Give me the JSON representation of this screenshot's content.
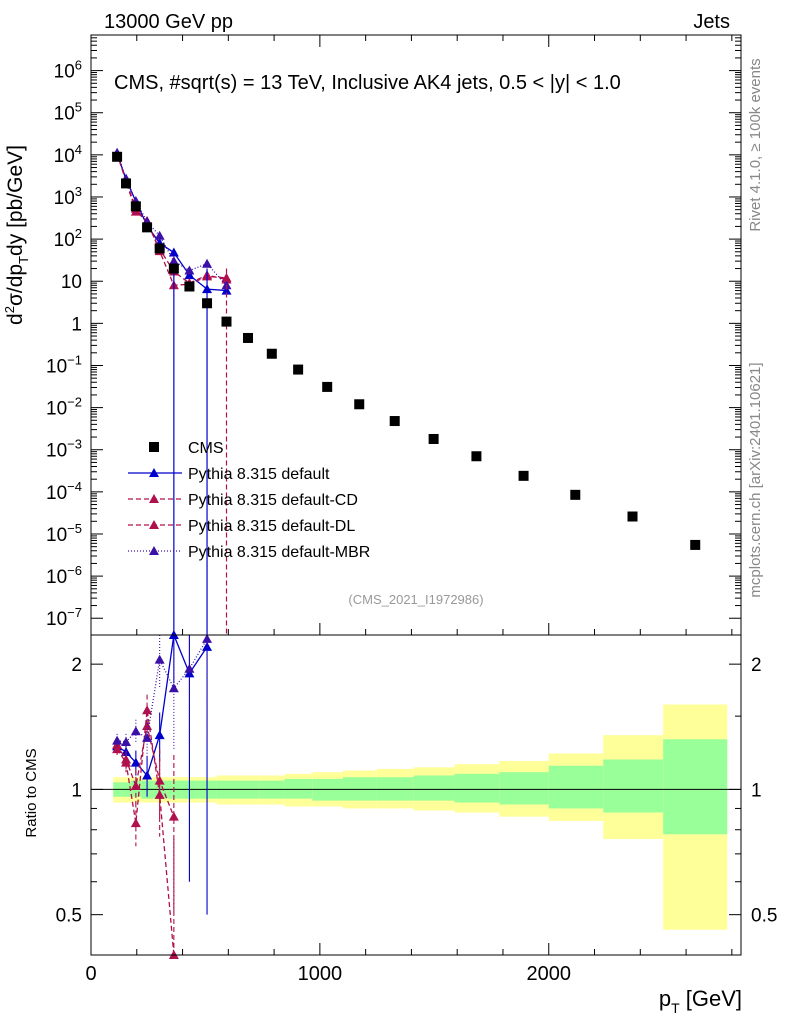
{
  "header": {
    "left": "13000 GeV pp",
    "right": "Jets"
  },
  "side_labels": {
    "rivet": "Rivet 4.1.0, ≥ 100k events",
    "source": "mcplots.cern.ch [arXiv:2401.10621]"
  },
  "chart_data": {
    "type": "scatter",
    "title": "CMS, #sqrt(s) = 13 TeV, Inclusive AK4 jets, 0.5 < |y| < 1.0",
    "watermark": "(CMS_2021_I1972986)",
    "xlabel": "p_T [GeV]",
    "ylabel": "d²σ/dp_T dy [pb/GeV]",
    "ratio_ylabel": "Ratio to CMS",
    "xlim": [
      0,
      2840
    ],
    "ylim": [
      4e-08,
      7000000
    ],
    "ratio_ylim": [
      0.4,
      2.35
    ],
    "x_ticks": [
      0,
      1000,
      2000
    ],
    "y_ticks": [
      {
        "v": 1000000.0,
        "base": "10",
        "exp": "6"
      },
      {
        "v": 100000.0,
        "base": "10",
        "exp": "5"
      },
      {
        "v": 10000.0,
        "base": "10",
        "exp": "4"
      },
      {
        "v": 1000.0,
        "base": "10",
        "exp": "3"
      },
      {
        "v": 100.0,
        "base": "10",
        "exp": "2"
      },
      {
        "v": 10,
        "base": "10",
        "exp": ""
      },
      {
        "v": 1,
        "base": "1",
        "exp": ""
      },
      {
        "v": 0.1,
        "base": "10",
        "exp": "−1"
      },
      {
        "v": 0.01,
        "base": "10",
        "exp": "−2"
      },
      {
        "v": 0.001,
        "base": "10",
        "exp": "−3"
      },
      {
        "v": 0.0001,
        "base": "10",
        "exp": "−4"
      },
      {
        "v": 1e-05,
        "base": "10",
        "exp": "−5"
      },
      {
        "v": 1e-06,
        "base": "10",
        "exp": "−6"
      },
      {
        "v": 1e-07,
        "base": "10",
        "exp": "−7"
      }
    ],
    "ratio_ticks": [
      {
        "v": 2,
        "label": "2"
      },
      {
        "v": 1,
        "label": "1"
      },
      {
        "v": 0.5,
        "label": "0.5"
      }
    ],
    "cms": {
      "name": "CMS",
      "x": [
        114,
        153,
        196,
        245,
        300,
        362,
        430,
        507,
        592,
        686,
        790,
        905,
        1032,
        1172,
        1327,
        1497,
        1684,
        1890,
        2116,
        2366,
        2640
      ],
      "y": [
        9000,
        2100,
        600,
        190,
        60,
        20,
        7.5,
        3,
        1.1,
        0.45,
        0.19,
        0.08,
        0.031,
        0.012,
        0.0048,
        0.0018,
        0.0007,
        0.00024,
        8.5e-05,
        2.6e-05,
        5.5e-06
      ]
    },
    "bands": {
      "edges": [
        97,
        133,
        174,
        220,
        272,
        330,
        395,
        468,
        548,
        638,
        737,
        846,
        967,
        1101,
        1248,
        1410,
        1588,
        1784,
        2000,
        2238,
        2500,
        2780
      ],
      "inner_lo": [
        0.96,
        0.96,
        0.96,
        0.95,
        0.95,
        0.95,
        0.95,
        0.95,
        0.95,
        0.95,
        0.95,
        0.95,
        0.94,
        0.94,
        0.94,
        0.94,
        0.93,
        0.92,
        0.9,
        0.88,
        0.78
      ],
      "inner_hi": [
        1.04,
        1.04,
        1.05,
        1.05,
        1.05,
        1.05,
        1.05,
        1.05,
        1.05,
        1.05,
        1.05,
        1.06,
        1.06,
        1.07,
        1.07,
        1.08,
        1.09,
        1.1,
        1.14,
        1.18,
        1.32
      ],
      "outer_lo": [
        0.93,
        0.93,
        0.93,
        0.93,
        0.93,
        0.93,
        0.93,
        0.93,
        0.92,
        0.92,
        0.92,
        0.91,
        0.91,
        0.9,
        0.9,
        0.89,
        0.88,
        0.86,
        0.84,
        0.76,
        0.46
      ],
      "outer_hi": [
        1.07,
        1.07,
        1.07,
        1.07,
        1.07,
        1.07,
        1.07,
        1.07,
        1.08,
        1.08,
        1.08,
        1.09,
        1.1,
        1.11,
        1.12,
        1.13,
        1.15,
        1.17,
        1.22,
        1.35,
        1.6
      ]
    },
    "series": [
      {
        "name": "Pythia 8.315 default",
        "color": "#0000cc",
        "dash": "",
        "x": [
          114,
          153,
          196,
          245,
          300,
          362,
          430,
          507,
          592
        ],
        "y": [
          10800,
          2600,
          780,
          210,
          80,
          48,
          14,
          6.5,
          6
        ],
        "ratio": [
          1.27,
          1.23,
          1.16,
          1.08,
          1.35,
          2.4,
          1.9,
          2.2,
          null
        ],
        "ratio_err": [
          0.05,
          0.06,
          0.08,
          0.12,
          0.18,
          0.6,
          1.3,
          1.7,
          null
        ]
      },
      {
        "name": "Pythia 8.315 default-CD",
        "color": "#b0104c",
        "dash": "5,3",
        "x": [
          114,
          153,
          196,
          245,
          300,
          362,
          430,
          507,
          592
        ],
        "y": [
          10700,
          2350,
          450,
          270,
          52,
          8,
          8.5,
          13,
          12
        ],
        "ratio": [
          1.25,
          1.16,
          0.83,
          1.55,
          0.97,
          0.36,
          null,
          null,
          null
        ],
        "ratio_err": [
          0.05,
          0.06,
          0.1,
          0.14,
          0.2,
          0.4,
          null,
          null,
          null
        ]
      },
      {
        "name": "Pythia 8.315 default-DL",
        "color": "#b0104c",
        "dash": "5,3",
        "x": [
          114,
          153,
          196,
          245,
          300,
          362,
          430,
          507,
          592
        ],
        "y": [
          10900,
          2450,
          530,
          245,
          58,
          17,
          9,
          14,
          11
        ],
        "ratio": [
          1.28,
          1.18,
          1.02,
          1.42,
          1.05,
          0.86,
          null,
          null,
          null
        ],
        "ratio_err": [
          0.05,
          0.06,
          0.1,
          0.12,
          0.2,
          0.35,
          null,
          null,
          null
        ]
      },
      {
        "name": "Pythia 8.315 default-MBR",
        "color": "#3a10a8",
        "dash": "1,2",
        "x": [
          114,
          153,
          196,
          245,
          300,
          362,
          430,
          507,
          592
        ],
        "y": [
          11200,
          2750,
          800,
          260,
          120,
          30,
          18,
          26,
          8
        ],
        "ratio": [
          1.31,
          1.3,
          1.38,
          1.33,
          2.05,
          1.75,
          1.95,
          2.3,
          null
        ],
        "ratio_err": [
          0.05,
          0.06,
          0.09,
          0.14,
          0.3,
          0.5,
          0.7,
          1.0,
          null
        ]
      }
    ]
  }
}
